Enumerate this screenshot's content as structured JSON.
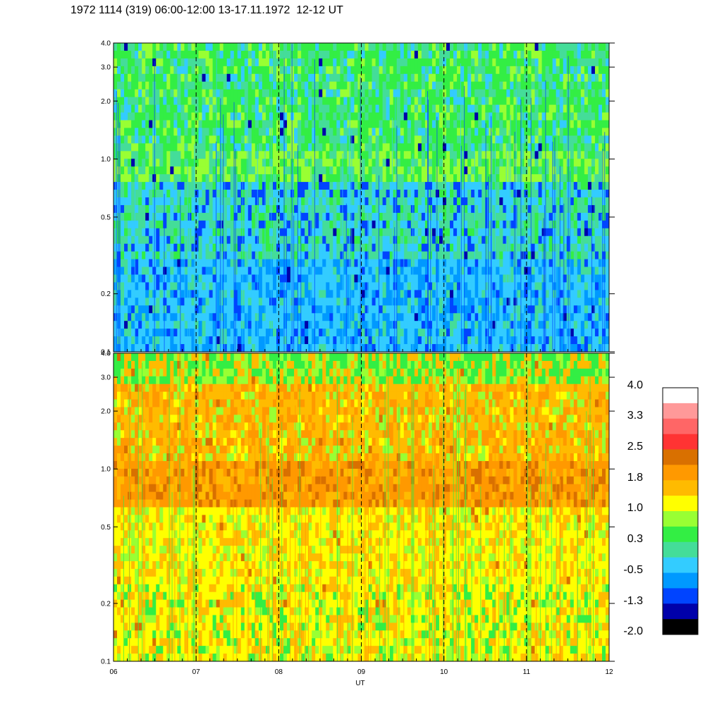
{
  "title": "1972 1114 (319) 06:00-12:00 13-17.11.1972  12-12 UT",
  "chart_data": {
    "type": "heatmap",
    "xlabel": "UT",
    "x_ticks": [
      "06",
      "07",
      "08",
      "09",
      "10",
      "11",
      "12"
    ],
    "x_range": [
      6,
      12
    ],
    "dashed_hours": [
      7,
      8,
      9,
      10,
      11
    ],
    "panels": [
      {
        "name": "upper",
        "y_scale": "log",
        "y_range": [
          0.1,
          4.0
        ],
        "y_ticks": [
          "0.1",
          "0.2",
          "0.5",
          "1.0",
          "2.0",
          "3.0",
          "4.0"
        ],
        "dominant_levels": [
          "-0.5",
          "0.3",
          "1.0"
        ]
      },
      {
        "name": "lower",
        "y_scale": "log",
        "y_range": [
          0.1,
          4.0
        ],
        "y_ticks": [
          "0.1",
          "0.2",
          "0.5",
          "1.0",
          "2.0",
          "3.0",
          "4.0"
        ],
        "dominant_levels": [
          "1.0",
          "1.8"
        ]
      }
    ],
    "colorbar": {
      "tick_labels": [
        "4.0",
        "3.3",
        "2.5",
        "1.8",
        "1.0",
        "0.3",
        "-0.5",
        "-1.3",
        "-2.0"
      ],
      "colors": [
        "#ffffff",
        "#ff9999",
        "#ff6666",
        "#ff3333",
        "#d97000",
        "#ff9900",
        "#ffbb00",
        "#ffff00",
        "#99ff33",
        "#33ee44",
        "#44dd99",
        "#33ccff",
        "#0099ff",
        "#0044ff",
        "#0000aa",
        "#000000"
      ]
    }
  }
}
